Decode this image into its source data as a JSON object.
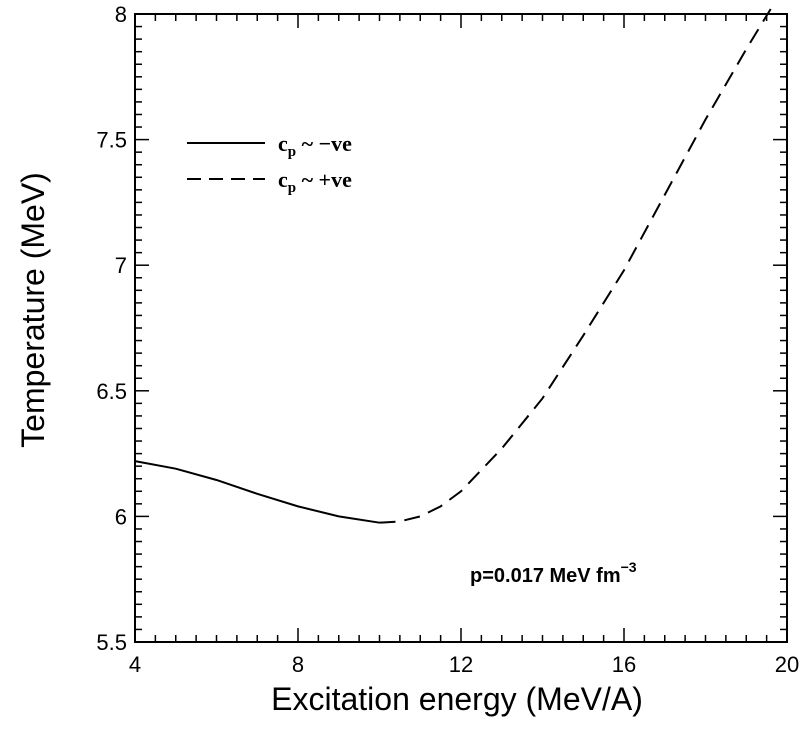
{
  "chart_data": {
    "type": "line",
    "xlabel": "Excitation energy (MeV/A)",
    "ylabel": "Temperature (MeV)",
    "xlim": [
      4,
      20
    ],
    "ylim": [
      5.5,
      8
    ],
    "xticks": [
      "4",
      "8",
      "12",
      "16",
      "20"
    ],
    "yticks": [
      "5.5",
      "6",
      "6.5",
      "7",
      "7.5",
      "8"
    ],
    "grid": false,
    "legend_position": "top-left",
    "series": [
      {
        "name": "c_p ~ −ve",
        "label_main": "c",
        "label_sub": "p",
        "label_rest": " ~ −ve",
        "style": "solid",
        "x": [
          4.0,
          5.0,
          6.0,
          7.0,
          8.0,
          9.0,
          10.0
        ],
        "y": [
          6.22,
          6.19,
          6.145,
          6.09,
          6.04,
          6.0,
          5.975
        ]
      },
      {
        "name": "c_p ~ +ve",
        "label_main": "c",
        "label_sub": "p",
        "label_rest": " ~ +ve",
        "style": "dashed",
        "x": [
          10.0,
          10.5,
          11.0,
          11.5,
          12.0,
          13.0,
          14.0,
          15.0,
          16.0,
          17.0,
          18.0,
          19.0,
          19.6
        ],
        "y": [
          5.975,
          5.98,
          6.0,
          6.04,
          6.1,
          6.27,
          6.47,
          6.72,
          6.98,
          7.28,
          7.58,
          7.86,
          8.02
        ]
      }
    ],
    "annotation": {
      "text_main": "p=0.017 MeV fm",
      "text_sup": "−3"
    }
  }
}
